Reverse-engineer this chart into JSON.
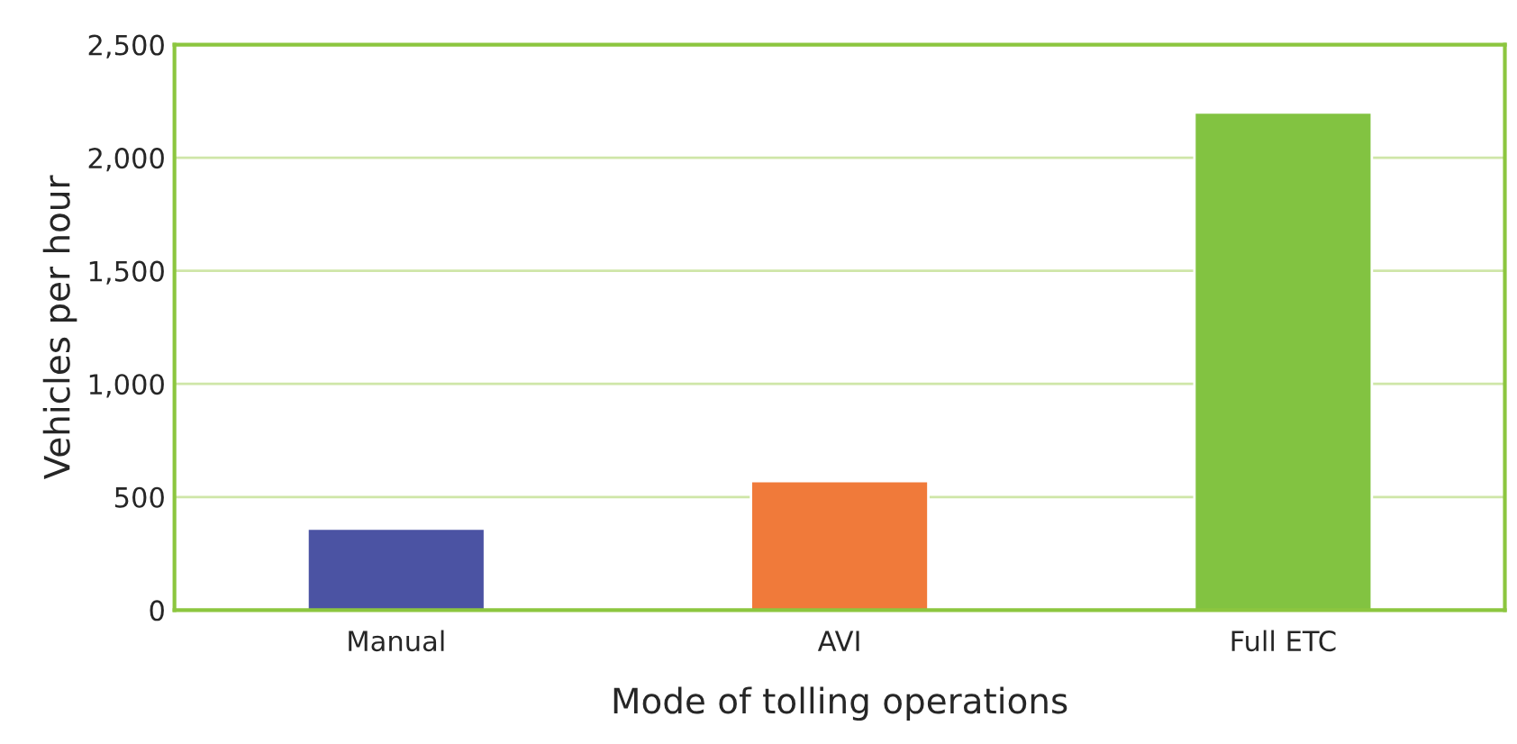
{
  "chart_data": {
    "type": "bar",
    "xlabel": "Mode of tolling operations",
    "ylabel": "Vehicles per hour",
    "categories": [
      "Manual",
      "AVI",
      "Full ETC"
    ],
    "values": [
      360,
      570,
      2200
    ],
    "colors": [
      "#4b53a3",
      "#f07a3a",
      "#82c341"
    ],
    "ylim": [
      0,
      2500
    ],
    "yticks": [
      {
        "value": 0,
        "label": "0"
      },
      {
        "value": 500,
        "label": "500"
      },
      {
        "value": 1000,
        "label": "1,000"
      },
      {
        "value": 1500,
        "label": "1,500"
      },
      {
        "value": 2000,
        "label": "2,000"
      },
      {
        "value": 2500,
        "label": "2,500"
      }
    ],
    "grid": "y",
    "legend": false
  }
}
